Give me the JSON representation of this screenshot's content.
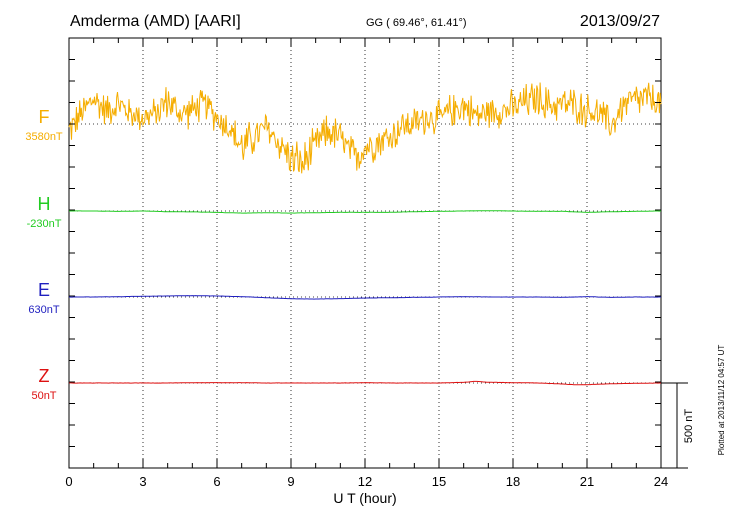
{
  "header": {
    "station": "Amderma (AMD)  [AARI]",
    "coords": "GG ( 69.46°,  61.41°)",
    "date": "2013/09/27"
  },
  "footer": {
    "plotted": "Plotted at 2013/11/12 04:57  UT"
  },
  "colors": {
    "F": "#f5ad00",
    "H": "#22cc22",
    "E": "#1f1fbf",
    "Z": "#dd1111"
  },
  "chart_data": {
    "type": "line",
    "title": "",
    "xlabel": "U T (hour)",
    "xlim": [
      0,
      24
    ],
    "xticks": [
      0,
      3,
      6,
      9,
      12,
      15,
      18,
      21,
      24
    ],
    "scale_bar": "500 nT",
    "grid": true,
    "series": [
      {
        "name": "F",
        "baseline": "3580nT",
        "x": [
          0,
          0.5,
          1,
          1.5,
          2,
          2.5,
          3,
          3.5,
          4,
          4.5,
          5,
          5.5,
          6,
          6.5,
          7,
          7.5,
          8,
          8.5,
          9,
          9.5,
          10,
          10.5,
          11,
          11.5,
          12,
          12.5,
          13,
          13.5,
          14,
          14.5,
          15,
          15.5,
          16,
          16.5,
          17,
          17.5,
          18,
          18.5,
          19,
          19.5,
          20,
          20.5,
          21,
          21.5,
          22,
          22.5,
          23,
          23.5,
          24
        ],
        "values": [
          -40,
          60,
          150,
          80,
          120,
          60,
          40,
          60,
          140,
          60,
          80,
          120,
          40,
          -20,
          -140,
          -80,
          -20,
          -110,
          -200,
          -240,
          -120,
          -40,
          -80,
          -200,
          -140,
          -100,
          -80,
          -10,
          0,
          40,
          30,
          80,
          110,
          50,
          70,
          80,
          90,
          130,
          150,
          110,
          120,
          110,
          80,
          60,
          -10,
          120,
          140,
          150,
          120
        ],
        "amplitude": [
          120,
          120,
          130,
          120,
          120,
          100,
          110,
          110,
          130,
          110,
          120,
          110,
          120,
          110,
          160,
          130,
          120,
          120,
          130,
          170,
          120,
          130,
          130,
          150,
          130,
          130,
          130,
          120,
          120,
          120,
          120,
          120,
          130,
          120,
          110,
          120,
          130,
          130,
          140,
          120,
          120,
          130,
          120,
          120,
          120,
          120,
          130,
          130,
          110
        ]
      },
      {
        "name": "H",
        "baseline": "-230nT",
        "x": [
          0,
          1,
          2,
          3,
          4,
          5,
          6,
          7,
          8,
          9,
          10,
          11,
          12,
          13,
          14,
          15,
          16,
          17,
          18,
          19,
          20,
          21,
          22,
          23,
          24
        ],
        "values": [
          0,
          0,
          -2,
          0,
          -4,
          -5,
          -8,
          -12,
          -10,
          -12,
          -10,
          -8,
          -8,
          -8,
          -4,
          -2,
          0,
          2,
          0,
          -2,
          -2,
          -8,
          -4,
          -2,
          0
        ]
      },
      {
        "name": "E",
        "baseline": "630nT",
        "x": [
          0,
          1,
          2,
          3,
          4,
          5,
          6,
          7,
          8,
          9,
          10,
          11,
          12,
          13,
          14,
          15,
          16,
          17,
          18,
          19,
          20,
          21,
          22,
          23,
          24
        ],
        "values": [
          0,
          0,
          2,
          4,
          6,
          8,
          6,
          2,
          -4,
          -10,
          -12,
          -10,
          -6,
          -4,
          -2,
          0,
          2,
          0,
          0,
          0,
          -2,
          2,
          -2,
          0,
          0
        ]
      },
      {
        "name": "Z",
        "baseline": "50nT",
        "x": [
          0,
          1,
          2,
          3,
          4,
          5,
          6,
          7,
          8,
          9,
          10,
          11,
          12,
          13,
          14,
          15,
          16,
          16.5,
          17,
          18,
          19,
          20,
          20.5,
          21,
          22,
          23,
          24
        ],
        "values": [
          0,
          0,
          0,
          0,
          0,
          2,
          2,
          2,
          0,
          0,
          0,
          0,
          2,
          0,
          0,
          0,
          4,
          10,
          4,
          2,
          0,
          -6,
          -10,
          -10,
          -4,
          -2,
          0
        ]
      }
    ]
  }
}
